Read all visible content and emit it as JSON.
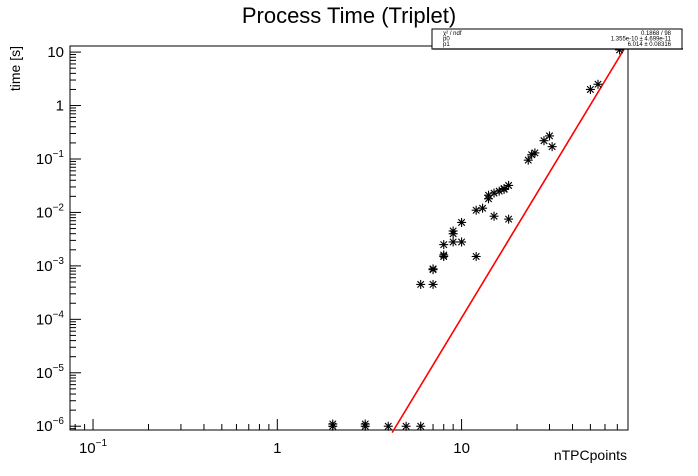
{
  "chart_data": {
    "type": "scatter",
    "title": "Process Time (Triplet)",
    "xlabel": "nTPCpoints",
    "ylabel": "time [s]",
    "xscale": "log",
    "yscale": "log",
    "xlim": [
      0.075,
      80
    ],
    "ylim": [
      8.5e-07,
      13
    ],
    "grid": false,
    "x_ticks": [
      {
        "value": 0.1,
        "base": "10",
        "exp": "−1"
      },
      {
        "value": 1,
        "base": "1",
        "exp": ""
      },
      {
        "value": 10,
        "base": "10",
        "exp": ""
      }
    ],
    "y_ticks": [
      {
        "value": 1e-06,
        "base": "10",
        "exp": "−6"
      },
      {
        "value": 1e-05,
        "base": "10",
        "exp": "−5"
      },
      {
        "value": 0.0001,
        "base": "10",
        "exp": "−4"
      },
      {
        "value": 0.001,
        "base": "10",
        "exp": "−3"
      },
      {
        "value": 0.01,
        "base": "10",
        "exp": "−2"
      },
      {
        "value": 0.1,
        "base": "10",
        "exp": "−1"
      },
      {
        "value": 1,
        "base": "1",
        "exp": ""
      },
      {
        "value": 10,
        "base": "10",
        "exp": ""
      }
    ],
    "points": {
      "marker": "asterisk",
      "color": "#000000",
      "x": [
        2,
        2,
        3,
        3,
        4,
        5,
        6,
        6,
        7,
        7,
        7,
        8,
        8,
        8,
        9,
        9,
        9,
        10,
        10,
        12,
        12,
        13,
        14,
        14,
        15,
        15,
        16,
        17,
        17,
        18,
        18,
        23,
        24,
        25,
        28,
        30,
        31,
        50,
        55,
        72
      ],
      "y": [
        1.1e-06,
        1e-06,
        1.1e-06,
        1e-06,
        1e-06,
        1e-06,
        1e-06,
        0.00045,
        0.00045,
        0.00085,
        0.00088,
        0.0015,
        0.0016,
        0.0025,
        0.0028,
        0.004,
        0.0045,
        0.0028,
        0.0065,
        0.0015,
        0.011,
        0.012,
        0.018,
        0.021,
        0.023,
        0.0085,
        0.025,
        0.027,
        0.028,
        0.032,
        0.0075,
        0.095,
        0.12,
        0.13,
        0.22,
        0.27,
        0.17,
        2.0,
        2.5,
        11.0
      ]
    },
    "fit": {
      "color": "#ff0000",
      "x_start": 4.2,
      "x_end": 78,
      "p0_value": 1.355e-10,
      "p1_value": 6.014
    },
    "stats_box": {
      "rows": [
        {
          "label": "χ² / ndf",
          "value": "0.1868 / 98"
        },
        {
          "label": "p0",
          "value": "1.355e-10 ± 4.699e-11"
        },
        {
          "label": "p1",
          "value": "6.014 ± 0.08316"
        }
      ]
    }
  }
}
